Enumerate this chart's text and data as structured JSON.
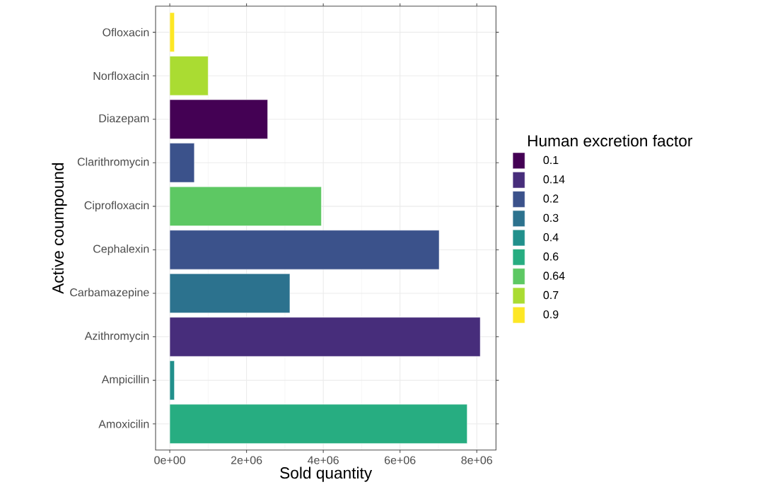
{
  "chart_data": {
    "type": "bar",
    "orientation": "horizontal",
    "xlabel": "Sold quantity",
    "ylabel": "Active coumpound",
    "legend_title": "Human excretion factor",
    "categories": [
      "Ofloxacin",
      "Norfloxacin",
      "Diazepam",
      "Clarithromycin",
      "Ciprofloxacin",
      "Cephalexin",
      "Carbamazepine",
      "Azithromycin",
      "Ampicillin",
      "Amoxicilin"
    ],
    "series": [
      {
        "name": "0.1",
        "color": "#440154",
        "values": [
          null,
          null,
          2550000,
          null,
          null,
          null,
          null,
          null,
          null,
          null
        ]
      },
      {
        "name": "0.14",
        "color": "#472d7b",
        "values": [
          null,
          null,
          null,
          null,
          null,
          null,
          null,
          8090000,
          null,
          null
        ]
      },
      {
        "name": "0.2",
        "color": "#3b528b",
        "values": [
          null,
          null,
          null,
          640000,
          null,
          7020000,
          null,
          null,
          null,
          null
        ]
      },
      {
        "name": "0.3",
        "color": "#2c728e",
        "values": [
          null,
          null,
          null,
          null,
          null,
          null,
          3130000,
          null,
          null,
          null
        ]
      },
      {
        "name": "0.4",
        "color": "#21908c",
        "values": [
          null,
          null,
          null,
          null,
          null,
          null,
          null,
          null,
          120000,
          null
        ]
      },
      {
        "name": "0.6",
        "color": "#27ad81",
        "values": [
          null,
          null,
          null,
          null,
          null,
          null,
          null,
          null,
          null,
          7750000
        ]
      },
      {
        "name": "0.64",
        "color": "#5dc863",
        "values": [
          null,
          null,
          null,
          null,
          3950000,
          null,
          null,
          null,
          null,
          null
        ]
      },
      {
        "name": "0.7",
        "color": "#aadc32",
        "values": [
          null,
          1000000,
          null,
          null,
          null,
          null,
          null,
          null,
          null,
          null
        ]
      },
      {
        "name": "0.9",
        "color": "#fde725",
        "values": [
          120000,
          null,
          null,
          null,
          null,
          null,
          null,
          null,
          null,
          null
        ]
      }
    ],
    "xlim": [
      -370000,
      8500000
    ],
    "xticks": [
      {
        "value": 0,
        "label": "0e+00"
      },
      {
        "value": 2000000,
        "label": "2e+06"
      },
      {
        "value": 4000000,
        "label": "4e+06"
      },
      {
        "value": 6000000,
        "label": "6e+06"
      },
      {
        "value": 8000000,
        "label": "8e+06"
      }
    ],
    "grid": true,
    "legend": "right"
  }
}
